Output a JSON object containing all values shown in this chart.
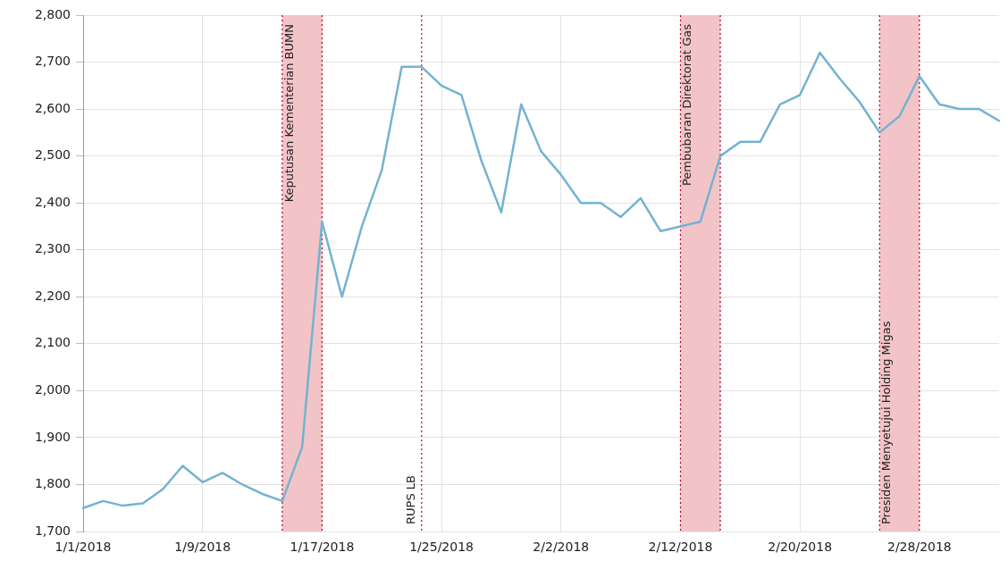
{
  "chart_data": {
    "type": "line",
    "categories": [
      "1/1/2018",
      null,
      null,
      null,
      null,
      null,
      "1/9/2018",
      null,
      null,
      null,
      null,
      null,
      "1/17/2018",
      null,
      null,
      null,
      null,
      null,
      "1/25/2018",
      null,
      null,
      null,
      null,
      null,
      "2/2/2018",
      null,
      null,
      null,
      null,
      null,
      "2/12/2018",
      null,
      null,
      null,
      null,
      null,
      "2/20/2018",
      null,
      null,
      null,
      null,
      null,
      "2/28/2018",
      null,
      null,
      null,
      null
    ],
    "series": [
      {
        "color": "#74b3d0",
        "values": [
          1750,
          1765,
          1755,
          1760,
          1790,
          1840,
          1805,
          1825,
          1800,
          1780,
          1765,
          1880,
          2360,
          2200,
          2350,
          2470,
          2690,
          2690,
          2650,
          2630,
          2490,
          2380,
          2610,
          2510,
          2460,
          2400,
          2400,
          2370,
          2410,
          2340,
          2350,
          2360,
          2500,
          2530,
          2530,
          2610,
          2630,
          2720,
          2665,
          2615,
          2550,
          2585,
          2670,
          2610,
          2600,
          2600,
          2575
        ]
      }
    ],
    "ylim": [
      1700,
      2800
    ],
    "yticks": [
      {
        "value": 1700,
        "label": "1,700"
      },
      {
        "value": 1800,
        "label": "1,800"
      },
      {
        "value": 1900,
        "label": "1,900"
      },
      {
        "value": 2000,
        "label": "2,000"
      },
      {
        "value": 2100,
        "label": "2,100"
      },
      {
        "value": 2200,
        "label": "2,200"
      },
      {
        "value": 2300,
        "label": "2,300"
      },
      {
        "value": 2400,
        "label": "2,400"
      },
      {
        "value": 2500,
        "label": "2,500"
      },
      {
        "value": 2600,
        "label": "2,600"
      },
      {
        "value": 2700,
        "label": "2,700"
      },
      {
        "value": 2800,
        "label": "2,800"
      }
    ],
    "grid": true,
    "legend": false,
    "marker": "none",
    "line_style": "solid",
    "annotations": [
      "Keputusan Kementerian BUMN",
      "RUPS LB",
      "Pembubaran Direktorat Gas",
      "Presiden Menyetujui Holding Migas"
    ]
  }
}
